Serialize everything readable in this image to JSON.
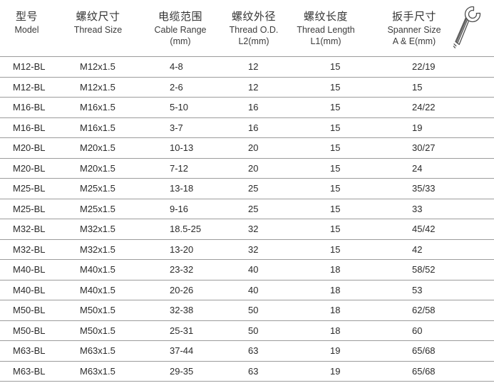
{
  "table": {
    "columns": [
      {
        "zh": "型号",
        "en": "Model",
        "sub": ""
      },
      {
        "zh": "螺纹尺寸",
        "en": "Thread Size",
        "sub": ""
      },
      {
        "zh": "电缆范围",
        "en": "Cable Range",
        "sub": "(mm)"
      },
      {
        "zh": "螺纹外径",
        "en": "Thread O.D.",
        "sub": "L2(mm)"
      },
      {
        "zh": "螺纹长度",
        "en": "Thread Length",
        "sub": "L1(mm)"
      },
      {
        "zh": "扳手尺寸",
        "en": "Spanner Size",
        "sub": "A & E(mm)"
      }
    ],
    "header_icon": "spanner-icon",
    "rows": [
      [
        "M12-BL",
        "M12x1.5",
        "4-8",
        "12",
        "15",
        "22/19"
      ],
      [
        "M12-BL",
        "M12x1.5",
        "2-6",
        "12",
        "15",
        "15"
      ],
      [
        "M16-BL",
        "M16x1.5",
        "5-10",
        "16",
        "15",
        "24/22"
      ],
      [
        "M16-BL",
        "M16x1.5",
        "3-7",
        "16",
        "15",
        "19"
      ],
      [
        "M20-BL",
        "M20x1.5",
        "10-13",
        "20",
        "15",
        "30/27"
      ],
      [
        "M20-BL",
        "M20x1.5",
        "7-12",
        "20",
        "15",
        "24"
      ],
      [
        "M25-BL",
        "M25x1.5",
        "13-18",
        "25",
        "15",
        "35/33"
      ],
      [
        "M25-BL",
        "M25x1.5",
        "9-16",
        "25",
        "15",
        "33"
      ],
      [
        "M32-BL",
        "M32x1.5",
        "18.5-25",
        "32",
        "15",
        "45/42"
      ],
      [
        "M32-BL",
        "M32x1.5",
        "13-20",
        "32",
        "15",
        "42"
      ],
      [
        "M40-BL",
        "M40x1.5",
        "23-32",
        "40",
        "18",
        "58/52"
      ],
      [
        "M40-BL",
        "M40x1.5",
        "20-26",
        "40",
        "18",
        "53"
      ],
      [
        "M50-BL",
        "M50x1.5",
        "32-38",
        "50",
        "18",
        "62/58"
      ],
      [
        "M50-BL",
        "M50x1.5",
        "25-31",
        "50",
        "18",
        "60"
      ],
      [
        "M63-BL",
        "M63x1.5",
        "37-44",
        "63",
        "19",
        "65/68"
      ],
      [
        "M63-BL",
        "M63x1.5",
        "29-35",
        "63",
        "19",
        "65/68"
      ]
    ],
    "colors": {
      "text": "#2b2b2b",
      "line": "#9c9c9c",
      "icon_stroke": "#4f4f4f"
    }
  }
}
